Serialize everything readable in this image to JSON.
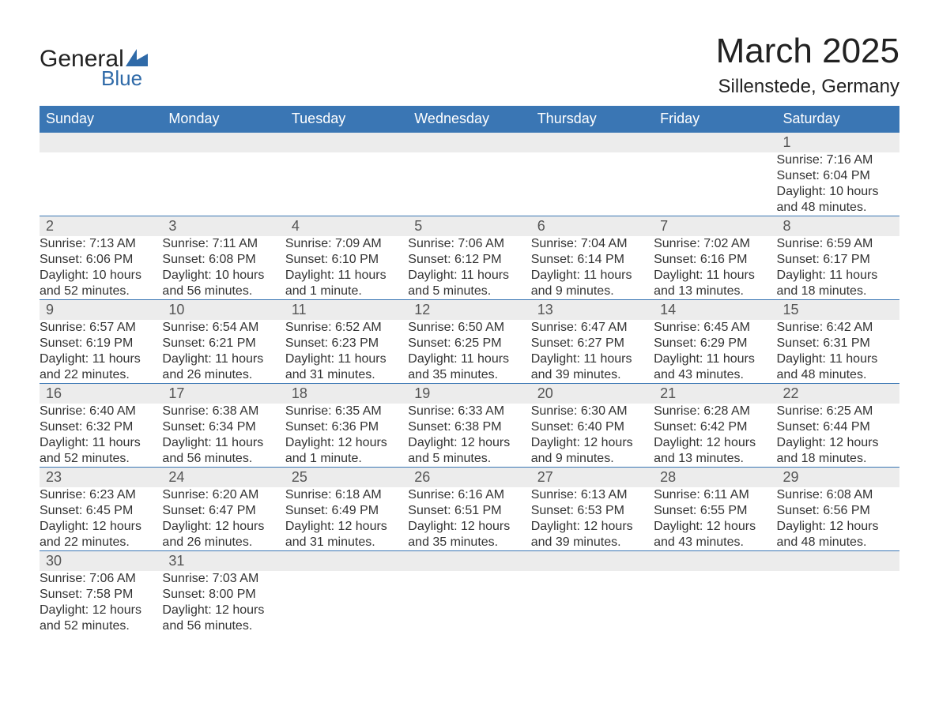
{
  "logo": {
    "general": "General",
    "blue": "Blue"
  },
  "title": "March 2025",
  "location": "Sillenstede, Germany",
  "colors": {
    "header_bg": "#3a76b4",
    "header_text": "#ffffff",
    "daynum_bg": "#ececec",
    "row_border": "#3a76b4",
    "body_text": "#333333",
    "page_bg": "#ffffff",
    "logo_accent": "#2f6aa8"
  },
  "day_headers": [
    "Sunday",
    "Monday",
    "Tuesday",
    "Wednesday",
    "Thursday",
    "Friday",
    "Saturday"
  ],
  "weeks": [
    {
      "nums": [
        "",
        "",
        "",
        "",
        "",
        "",
        "1"
      ],
      "details": [
        "",
        "",
        "",
        "",
        "",
        "",
        "Sunrise: 7:16 AM\nSunset: 6:04 PM\nDaylight: 10 hours and 48 minutes."
      ]
    },
    {
      "nums": [
        "2",
        "3",
        "4",
        "5",
        "6",
        "7",
        "8"
      ],
      "details": [
        "Sunrise: 7:13 AM\nSunset: 6:06 PM\nDaylight: 10 hours and 52 minutes.",
        "Sunrise: 7:11 AM\nSunset: 6:08 PM\nDaylight: 10 hours and 56 minutes.",
        "Sunrise: 7:09 AM\nSunset: 6:10 PM\nDaylight: 11 hours and 1 minute.",
        "Sunrise: 7:06 AM\nSunset: 6:12 PM\nDaylight: 11 hours and 5 minutes.",
        "Sunrise: 7:04 AM\nSunset: 6:14 PM\nDaylight: 11 hours and 9 minutes.",
        "Sunrise: 7:02 AM\nSunset: 6:16 PM\nDaylight: 11 hours and 13 minutes.",
        "Sunrise: 6:59 AM\nSunset: 6:17 PM\nDaylight: 11 hours and 18 minutes."
      ]
    },
    {
      "nums": [
        "9",
        "10",
        "11",
        "12",
        "13",
        "14",
        "15"
      ],
      "details": [
        "Sunrise: 6:57 AM\nSunset: 6:19 PM\nDaylight: 11 hours and 22 minutes.",
        "Sunrise: 6:54 AM\nSunset: 6:21 PM\nDaylight: 11 hours and 26 minutes.",
        "Sunrise: 6:52 AM\nSunset: 6:23 PM\nDaylight: 11 hours and 31 minutes.",
        "Sunrise: 6:50 AM\nSunset: 6:25 PM\nDaylight: 11 hours and 35 minutes.",
        "Sunrise: 6:47 AM\nSunset: 6:27 PM\nDaylight: 11 hours and 39 minutes.",
        "Sunrise: 6:45 AM\nSunset: 6:29 PM\nDaylight: 11 hours and 43 minutes.",
        "Sunrise: 6:42 AM\nSunset: 6:31 PM\nDaylight: 11 hours and 48 minutes."
      ]
    },
    {
      "nums": [
        "16",
        "17",
        "18",
        "19",
        "20",
        "21",
        "22"
      ],
      "details": [
        "Sunrise: 6:40 AM\nSunset: 6:32 PM\nDaylight: 11 hours and 52 minutes.",
        "Sunrise: 6:38 AM\nSunset: 6:34 PM\nDaylight: 11 hours and 56 minutes.",
        "Sunrise: 6:35 AM\nSunset: 6:36 PM\nDaylight: 12 hours and 1 minute.",
        "Sunrise: 6:33 AM\nSunset: 6:38 PM\nDaylight: 12 hours and 5 minutes.",
        "Sunrise: 6:30 AM\nSunset: 6:40 PM\nDaylight: 12 hours and 9 minutes.",
        "Sunrise: 6:28 AM\nSunset: 6:42 PM\nDaylight: 12 hours and 13 minutes.",
        "Sunrise: 6:25 AM\nSunset: 6:44 PM\nDaylight: 12 hours and 18 minutes."
      ]
    },
    {
      "nums": [
        "23",
        "24",
        "25",
        "26",
        "27",
        "28",
        "29"
      ],
      "details": [
        "Sunrise: 6:23 AM\nSunset: 6:45 PM\nDaylight: 12 hours and 22 minutes.",
        "Sunrise: 6:20 AM\nSunset: 6:47 PM\nDaylight: 12 hours and 26 minutes.",
        "Sunrise: 6:18 AM\nSunset: 6:49 PM\nDaylight: 12 hours and 31 minutes.",
        "Sunrise: 6:16 AM\nSunset: 6:51 PM\nDaylight: 12 hours and 35 minutes.",
        "Sunrise: 6:13 AM\nSunset: 6:53 PM\nDaylight: 12 hours and 39 minutes.",
        "Sunrise: 6:11 AM\nSunset: 6:55 PM\nDaylight: 12 hours and 43 minutes.",
        "Sunrise: 6:08 AM\nSunset: 6:56 PM\nDaylight: 12 hours and 48 minutes."
      ]
    },
    {
      "nums": [
        "30",
        "31",
        "",
        "",
        "",
        "",
        ""
      ],
      "details": [
        "Sunrise: 7:06 AM\nSunset: 7:58 PM\nDaylight: 12 hours and 52 minutes.",
        "Sunrise: 7:03 AM\nSunset: 8:00 PM\nDaylight: 12 hours and 56 minutes.",
        "",
        "",
        "",
        "",
        ""
      ]
    }
  ]
}
